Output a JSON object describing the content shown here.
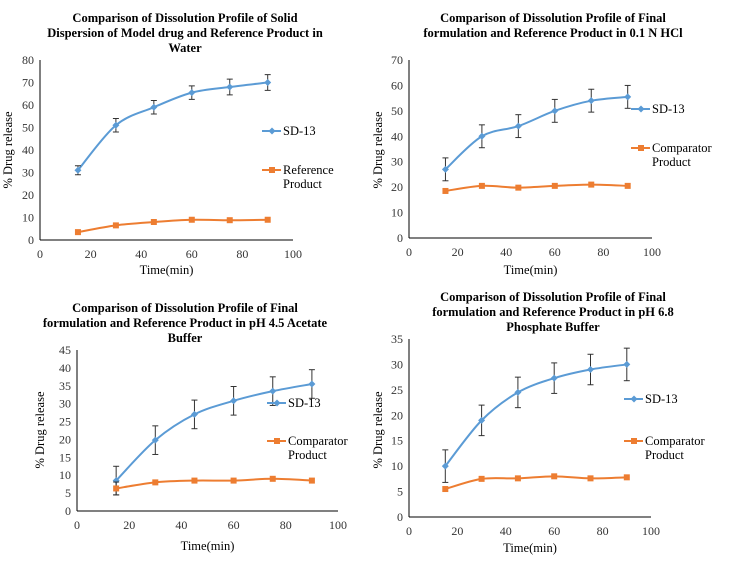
{
  "colors": {
    "sd": "#5b9bd5",
    "ref": "#ed7d31",
    "axis": "#000000",
    "error": "#333333"
  },
  "chart_data": [
    {
      "type": "line",
      "title": "Comparison of Dissolution Profile of Solid Dispersion of Model drug and Reference Product in Water",
      "title_lines": [
        "Comparison  of Dissolution Profile  of Solid",
        "Dispersion of Model drug and Reference Product in",
        "Water"
      ],
      "xlabel": "Time(min)",
      "ylabel": "% Drug release",
      "xlim": [
        0,
        100
      ],
      "ylim": [
        0,
        80
      ],
      "xticks": [
        0,
        20,
        40,
        60,
        80,
        100
      ],
      "yticks": [
        0,
        10,
        20,
        30,
        40,
        50,
        60,
        70,
        80
      ],
      "x": [
        15,
        30,
        45,
        60,
        75,
        90
      ],
      "series": [
        {
          "name": "SD-13",
          "legend_lines": [
            "SD-13"
          ],
          "values": [
            31,
            51,
            59,
            65.5,
            68,
            70
          ],
          "error": [
            2,
            3,
            3,
            3,
            3.5,
            3.5
          ]
        },
        {
          "name": "Reference Product",
          "legend_lines": [
            "Reference",
            "Product"
          ],
          "values": [
            3.5,
            6.5,
            8,
            9,
            8.8,
            9
          ]
        }
      ],
      "grid": false,
      "legend": "right"
    },
    {
      "type": "line",
      "title": "Comparison of Dissolution Profile of Final formulation and Reference Product in 0.1 N HCl",
      "title_lines": [
        "Comparison  of Dissolution Profile  of Final",
        "formulation  and Reference  Product in 0.1  N HCl"
      ],
      "xlabel": "Time(min)",
      "ylabel": "% Drug release",
      "xlim": [
        0,
        100
      ],
      "ylim": [
        0,
        70
      ],
      "xticks": [
        0,
        20,
        40,
        60,
        80,
        100
      ],
      "yticks": [
        0,
        10,
        20,
        30,
        40,
        50,
        60,
        70
      ],
      "x": [
        15,
        30,
        45,
        60,
        75,
        90
      ],
      "series": [
        {
          "name": "SD-13",
          "legend_lines": [
            "SD-13"
          ],
          "values": [
            27,
            40,
            44,
            50,
            54,
            55.5
          ],
          "error": [
            4.5,
            4.5,
            4.5,
            4.5,
            4.5,
            4.5
          ]
        },
        {
          "name": "Comparator Product",
          "legend_lines": [
            "Comparator",
            "Product"
          ],
          "values": [
            18.5,
            20.5,
            19.8,
            20.5,
            21,
            20.5
          ]
        }
      ],
      "grid": false,
      "legend": "right"
    },
    {
      "type": "line",
      "title": "Comparison of Dissolution Profile of Final formulation and Reference Product in pH 4.5 Acetate Buffer",
      "title_lines": [
        "Comparison  of Dissolution Profile  of Final",
        "formulation  and Reference  Product in pH 4.5  Acetate",
        "Buffer"
      ],
      "xlabel": "Time(min)",
      "ylabel": "% Drug release",
      "xlim": [
        0,
        100
      ],
      "ylim": [
        0,
        45
      ],
      "xticks": [
        0,
        20,
        40,
        60,
        80,
        100
      ],
      "yticks": [
        0,
        5,
        10,
        15,
        20,
        25,
        30,
        35,
        40,
        45
      ],
      "x": [
        15,
        30,
        45,
        60,
        75,
        90
      ],
      "series": [
        {
          "name": "SD-13",
          "legend_lines": [
            "SD-13"
          ],
          "values": [
            8.5,
            19.8,
            27,
            30.8,
            33.5,
            35.5
          ],
          "error": [
            4,
            4,
            4,
            4,
            4,
            4
          ]
        },
        {
          "name": "Comparator Product",
          "legend_lines": [
            "Comparator",
            "Product"
          ],
          "values": [
            6.3,
            8,
            8.5,
            8.5,
            9,
            8.5
          ],
          "error": [
            1.8,
            0,
            0,
            0,
            0,
            0
          ]
        }
      ],
      "grid": false,
      "legend": "right"
    },
    {
      "type": "line",
      "title": "Comparison of Dissolution Profile of Final formulation and Reference Product in pH 6.8 Phosphate Buffer",
      "title_lines": [
        "Comparison  of Dissolution Profile  of Final",
        "formulation  and Reference  Product in pH 6.8",
        "Phosphate Buffer"
      ],
      "xlabel": "Time(min)",
      "ylabel": "% Drug release",
      "xlim": [
        0,
        100
      ],
      "ylim": [
        0,
        35
      ],
      "xticks": [
        0,
        20,
        40,
        60,
        80,
        100
      ],
      "yticks": [
        0,
        5,
        10,
        15,
        20,
        25,
        30,
        35
      ],
      "x": [
        15,
        30,
        45,
        60,
        75,
        90
      ],
      "series": [
        {
          "name": "SD-13",
          "legend_lines": [
            "SD-13"
          ],
          "values": [
            10,
            19,
            24.5,
            27.3,
            29,
            30
          ],
          "error": [
            3.2,
            3,
            3,
            3,
            3,
            3.2
          ]
        },
        {
          "name": "Comparator Product",
          "legend_lines": [
            "Comparator",
            "Product"
          ],
          "values": [
            5.5,
            7.5,
            7.6,
            8,
            7.6,
            7.8
          ]
        }
      ],
      "grid": false,
      "legend": "right"
    }
  ]
}
